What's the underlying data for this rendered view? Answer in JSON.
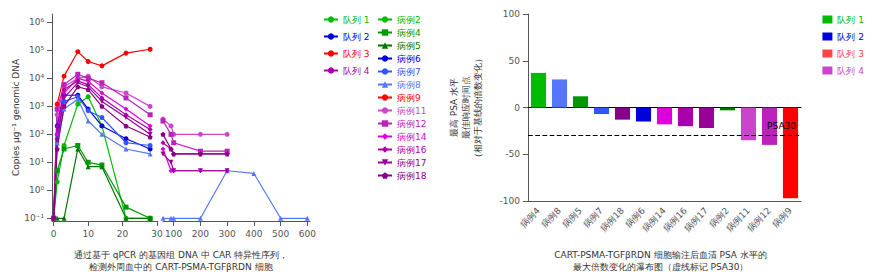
{
  "chart_data": [
    {
      "type": "line",
      "log": "y",
      "grid": false,
      "legend": "right",
      "ylabel": "Copies μg⁻¹ genomic DNA",
      "xlabel": "通过基于 qPCR 的基因组 DNA 中 CAR 特异性序列，\n检测外周血中的 CART-PSMA-TGFβRDN 细胞",
      "xlim": [
        -0.5,
        30
      ],
      "xticks": [
        0,
        10,
        20,
        30
      ],
      "ylim": [
        0.08,
        2000000
      ],
      "yticks": [
        {
          "value": 0.1,
          "label": "10⁻¹"
        },
        {
          "value": 1,
          "label": "10⁰"
        },
        {
          "value": 10,
          "label": "10¹"
        },
        {
          "value": 100,
          "label": "10²"
        },
        {
          "value": 1000,
          "label": "10³"
        },
        {
          "value": 10000,
          "label": "10⁴"
        },
        {
          "value": 100000,
          "label": "10⁵"
        },
        {
          "value": 1000000,
          "label": "10⁶"
        }
      ],
      "series": [
        {
          "name": "队列 1",
          "color": "#00bb00",
          "marker": "none",
          "x": [],
          "values": []
        },
        {
          "name": "队列 2",
          "color": "#0000dd",
          "marker": "none",
          "x": [],
          "values": []
        },
        {
          "name": "队列 3",
          "color": "#ff0000",
          "marker": "none",
          "x": [],
          "values": []
        },
        {
          "name": "队列 4",
          "color": "#aa00aa",
          "marker": "none",
          "x": [],
          "values": []
        },
        {
          "name": "病例2",
          "color": "#00bb00",
          "marker": "circle",
          "x": [
            0,
            1,
            3,
            7,
            10,
            14,
            21,
            28
          ],
          "values": [
            0.1,
            2.0,
            40.0,
            1200.0,
            2200.0,
            200.0,
            0.1,
            0.1
          ]
        },
        {
          "name": "病例4",
          "color": "#009900",
          "marker": "square",
          "x": [
            0,
            1,
            3,
            7,
            10,
            14,
            21,
            28
          ],
          "values": [
            0.1,
            5.0,
            30.0,
            40.0,
            10.0,
            8.0,
            0.25,
            0.1
          ]
        },
        {
          "name": "病例5",
          "color": "#007700",
          "marker": "triangle",
          "x": [
            0,
            1,
            3,
            7,
            10,
            14,
            21,
            28
          ],
          "values": [
            0.1,
            0.1,
            0.1,
            30.0,
            7.0,
            7.0,
            0.1,
            0.1
          ]
        },
        {
          "name": "病例6",
          "color": "#0000dd",
          "marker": "circle",
          "x": [
            0,
            1,
            3,
            7,
            10,
            14,
            21,
            28
          ],
          "values": [
            0.1,
            200.0,
            2500.0,
            2500.0,
            800.0,
            200.0,
            70.0,
            30.0
          ]
        },
        {
          "name": "病例7",
          "color": "#3355ff",
          "marker": "circle",
          "x": [
            0,
            1,
            3,
            7,
            10,
            14,
            21,
            28
          ],
          "values": [
            0.1,
            100.0,
            1500.0,
            2200.0,
            700.0,
            400.0,
            50.0,
            40.0
          ]
        },
        {
          "name": "病例8",
          "color": "#5577ff",
          "marker": "triangle",
          "x": [
            0,
            1,
            3,
            7,
            10,
            14,
            21,
            28
          ],
          "values": [
            0.1,
            50.0,
            800.0,
            1800.0,
            300.0,
            100.0,
            30.0,
            20.0
          ]
        },
        {
          "name": "病例9",
          "color": "#ff0000",
          "marker": "circle",
          "x": [
            0,
            1,
            3,
            7,
            10,
            14,
            21,
            28
          ],
          "values": [
            0.1,
            1200.0,
            12000.0,
            90000.0,
            40000.0,
            28000.0,
            80000.0,
            110000.0
          ]
        },
        {
          "name": "病例11",
          "color": "#cc44cc",
          "marker": "circle",
          "x": [
            0,
            1,
            3,
            7,
            10,
            14,
            21,
            28
          ],
          "values": [
            0.1,
            500.0,
            5000.0,
            10000.0,
            12000.0,
            5000.0,
            3000.0,
            1000.0
          ]
        },
        {
          "name": "病例12",
          "color": "#bb22bb",
          "marker": "square",
          "x": [
            0,
            1,
            3,
            7,
            10,
            14,
            21,
            28
          ],
          "values": [
            0.1,
            800.0,
            6000.0,
            14000.0,
            10000.0,
            7000.0,
            2000.0,
            500.0
          ]
        },
        {
          "name": "病例14",
          "color": "#dd00dd",
          "marker": "diamond",
          "x": [
            0,
            1,
            3,
            7,
            10,
            14,
            21,
            28
          ],
          "values": [
            0.1,
            100.0,
            3000.0,
            10000.0,
            8000.0,
            3000.0,
            800.0,
            200.0
          ]
        },
        {
          "name": "病例16",
          "color": "#aa00aa",
          "marker": "diamond",
          "x": [
            0,
            1,
            3,
            7,
            10,
            14,
            21,
            28
          ],
          "values": [
            0.1,
            200.0,
            4000.0,
            8000.0,
            6000.0,
            2000.0,
            500.0,
            150.0
          ]
        },
        {
          "name": "病例17",
          "color": "#990099",
          "marker": "triangle-down",
          "x": [
            0,
            1,
            3,
            7,
            10,
            14,
            21,
            28
          ],
          "values": [
            0.1,
            60.0,
            2000.0,
            7000.0,
            5000.0,
            1500.0,
            400.0,
            100.0
          ]
        },
        {
          "name": "病例18",
          "color": "#880088",
          "marker": "pentagon",
          "x": [
            0,
            1,
            3,
            7,
            10,
            14,
            21,
            28
          ],
          "values": [
            0.1,
            30.0,
            1000.0,
            5000.0,
            4000.0,
            1000.0,
            200.0,
            80.0
          ]
        }
      ]
    },
    {
      "type": "line",
      "log": "y",
      "grid": false,
      "tick_labels": "x",
      "xlim": [
        60,
        610
      ],
      "xticks": [
        100,
        200,
        300,
        400,
        500,
        600
      ],
      "ylim": [
        0.08,
        2000000
      ],
      "series": [
        {
          "name": "病例8",
          "color": "#5577ff",
          "marker": "triangle",
          "x": [
            60,
            90,
            100,
            200,
            300,
            400,
            500,
            600
          ],
          "values": [
            0.1,
            0.1,
            0.1,
            0.1,
            5.0,
            4.0,
            0.1,
            0.1
          ]
        },
        {
          "name": "病例11",
          "color": "#cc44cc",
          "marker": "circle",
          "x": [
            60,
            90,
            100,
            200,
            300
          ],
          "values": [
            350.0,
            200.0,
            100.0,
            100.0,
            100.0
          ]
        },
        {
          "name": "病例12",
          "color": "#bb22bb",
          "marker": "square",
          "x": [
            60,
            90,
            100,
            200,
            300
          ],
          "values": [
            300.0,
            100.0,
            50.0,
            25.0,
            25.0
          ]
        },
        {
          "name": "病例14",
          "color": "#dd00dd",
          "marker": "diamond",
          "x": [
            60,
            90,
            100,
            200,
            300
          ],
          "values": [
            30.0,
            5.0,
            5.0,
            5.0,
            5.0
          ]
        },
        {
          "name": "病例16",
          "color": "#aa00aa",
          "marker": "diamond",
          "x": [
            60,
            90,
            100,
            200,
            300
          ],
          "values": [
            50.0,
            30.0,
            20.0,
            20.0,
            20.0
          ]
        },
        {
          "name": "病例17",
          "color": "#990099",
          "marker": "triangle-down",
          "x": [
            60,
            90,
            100,
            200,
            300
          ],
          "values": [
            20.0,
            10.0,
            5.0,
            5.0,
            5.0
          ]
        },
        {
          "name": "病例18",
          "color": "#880088",
          "marker": "pentagon",
          "x": [
            60,
            90,
            100,
            200,
            300
          ],
          "values": [
            100.0,
            30.0,
            20.0,
            20.0,
            20.0
          ]
        }
      ]
    },
    {
      "type": "bar",
      "grid": false,
      "legend": "right",
      "title": "CART-PSMA-TGFβRDN 细胞输注后血清 PSA 水平的\n最大倍数变化的瀑布图（虚线标记 PSA30）",
      "ylabel": "最高 PSA 水平\n最佳响应时间点\n（相对于基线的倍数变化）",
      "categories": [
        "病例4",
        "病例8",
        "病例5",
        "病例7",
        "病例18",
        "病例6",
        "病例14",
        "病例16",
        "病例17",
        "病例2",
        "病例11",
        "病例12",
        "病例9"
      ],
      "ylim": [
        -100,
        100
      ],
      "yticks": [
        -100,
        -50,
        0,
        50,
        100
      ],
      "annotations": [
        {
          "text": "PSA30",
          "y": -30,
          "line_style": "dashed"
        }
      ],
      "series": [
        {
          "name": "队列 1",
          "color": "#00bb00",
          "values": [
            37,
            null,
            12,
            null,
            null,
            null,
            null,
            null,
            null,
            -3,
            null,
            null,
            null
          ],
          "colors": [
            "#00bb00",
            null,
            "#009900",
            null,
            null,
            null,
            null,
            null,
            null,
            "#007700",
            null,
            null,
            null
          ]
        },
        {
          "name": "队列 2",
          "color": "#0000dd",
          "values": [
            null,
            30,
            null,
            -7,
            null,
            -15,
            null,
            null,
            null,
            null,
            null,
            null,
            null
          ],
          "colors": [
            null,
            "#5577ff",
            null,
            "#3355ff",
            null,
            "#0000dd",
            null,
            null,
            null,
            null,
            null,
            null,
            null
          ]
        },
        {
          "name": "队列 3",
          "color": "#ff4444",
          "values": [
            null,
            null,
            null,
            null,
            null,
            null,
            null,
            null,
            null,
            null,
            null,
            null,
            -97
          ],
          "colors": [
            null,
            null,
            null,
            null,
            null,
            null,
            null,
            null,
            null,
            null,
            null,
            null,
            "#ff0000"
          ]
        },
        {
          "name": "队列 4",
          "color": "#cc44cc",
          "values": [
            null,
            null,
            null,
            null,
            -13,
            null,
            -18,
            -20,
            -22,
            null,
            -35,
            -40,
            null
          ],
          "colors": [
            null,
            null,
            null,
            null,
            "#880088",
            null,
            "#dd00dd",
            "#aa00aa",
            "#990099",
            null,
            "#cc44cc",
            "#bb22bb",
            null
          ]
        }
      ]
    }
  ]
}
